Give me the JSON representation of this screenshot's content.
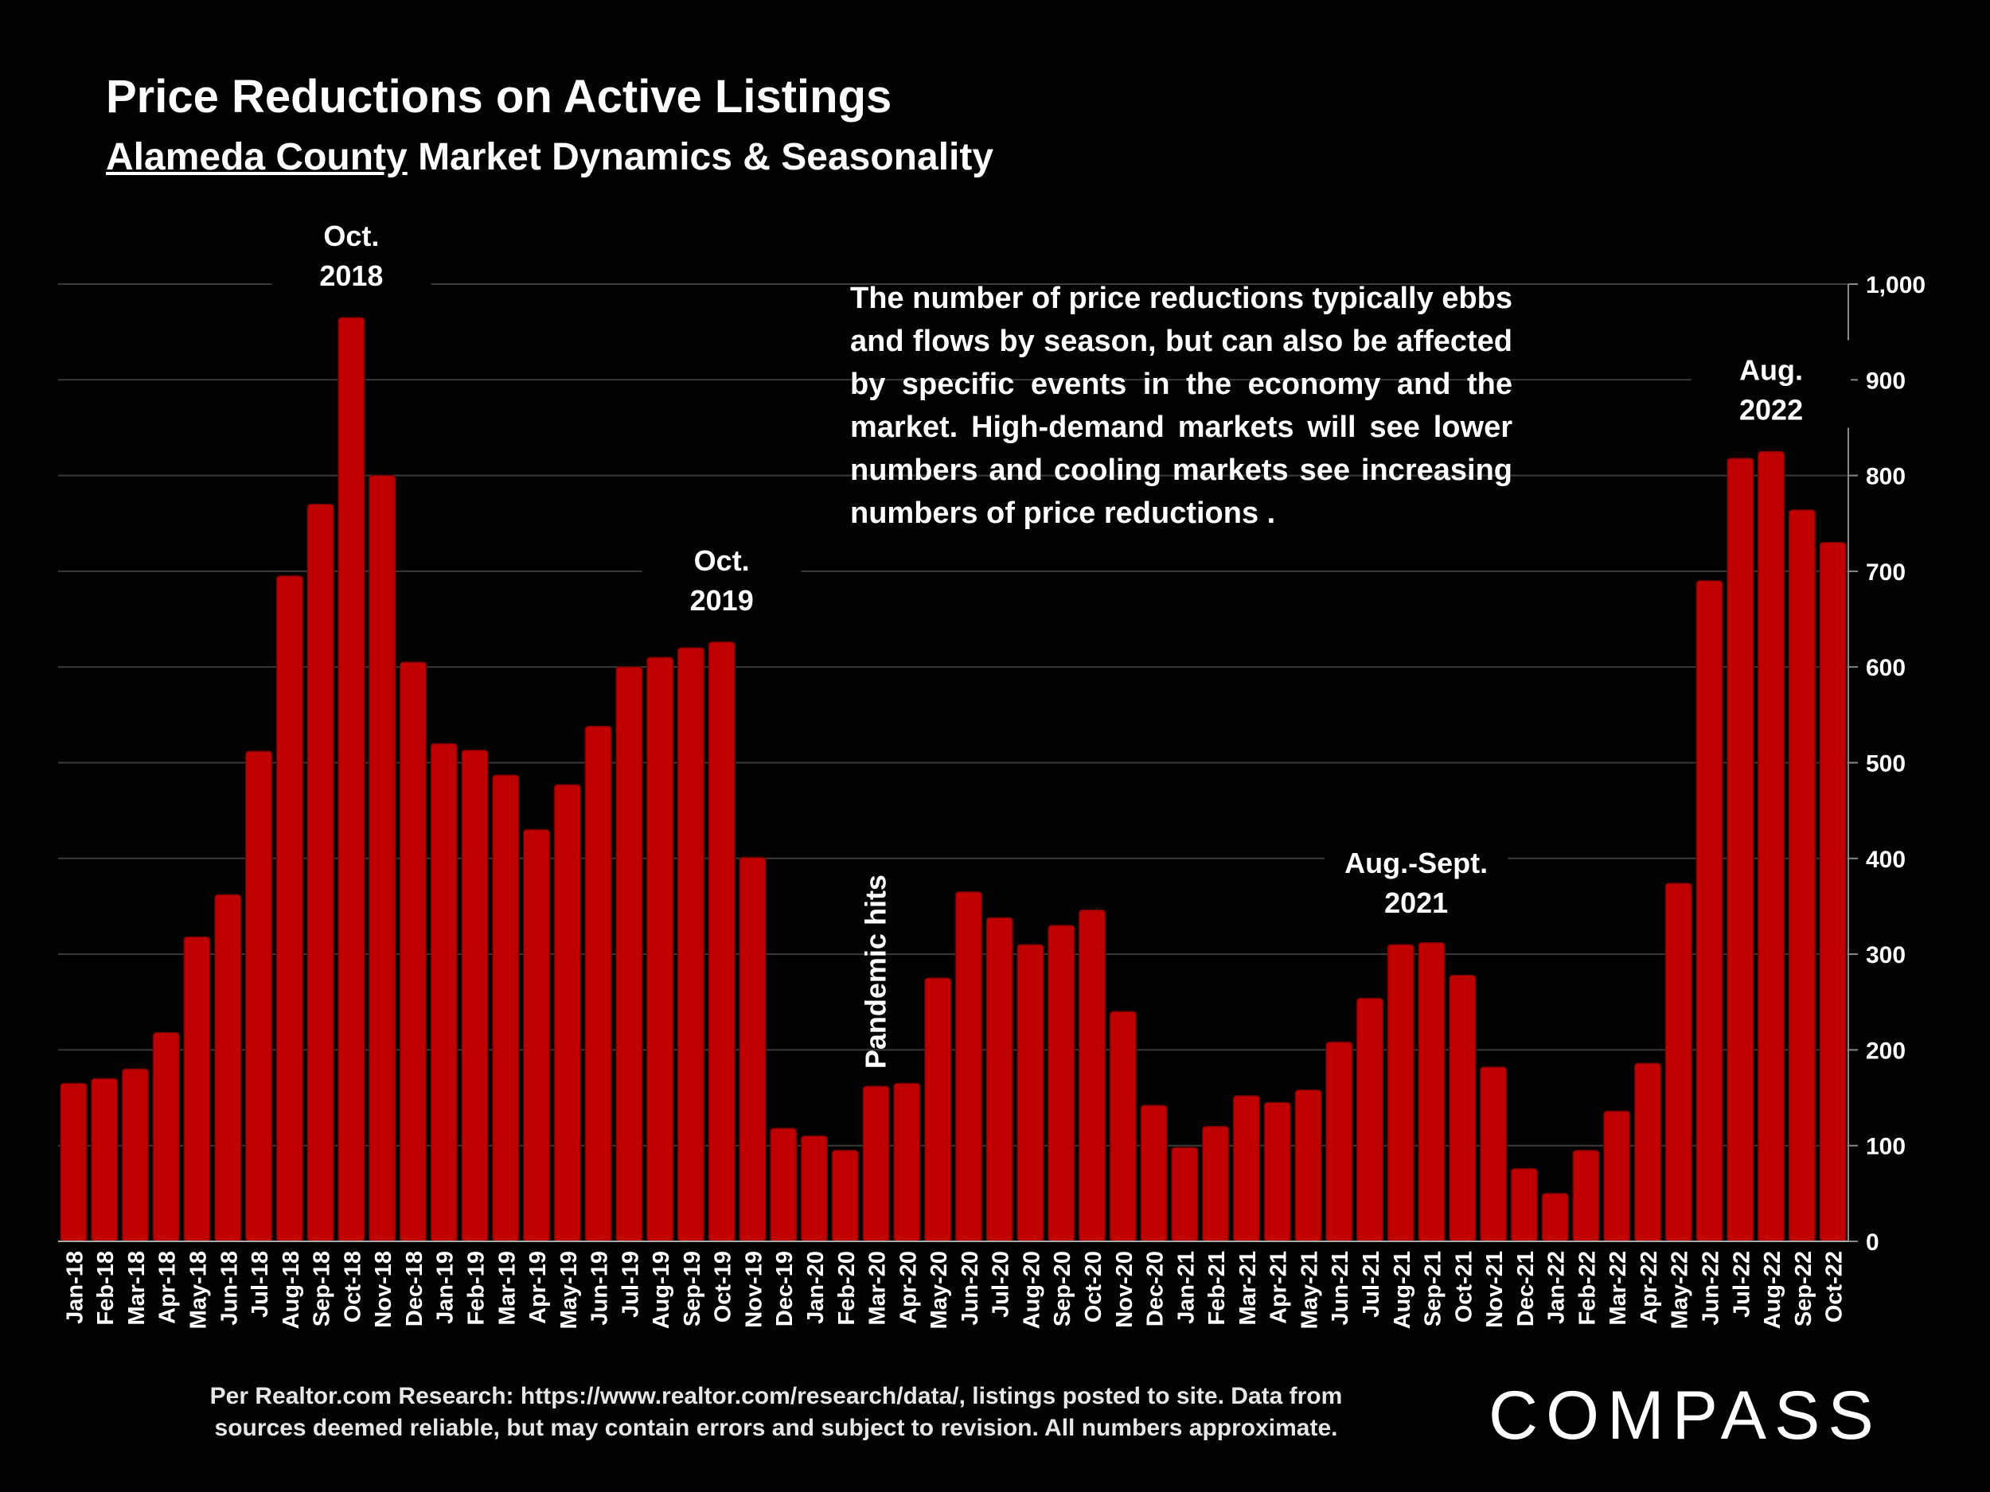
{
  "title": "Price Reductions on Active Listings",
  "subtitle_underlined": "Alameda County",
  "subtitle_rest": " Market Dynamics & Seasonality",
  "description": "The number of price reductions typically ebbs and flows by season, but can also be affected by specific events in the economy and the market. High-demand markets will see lower numbers and cooling markets see increasing numbers of price reductions .",
  "footer": {
    "line1": "Per Realtor.com Research:  https://www.realtor.com/research/data/, listings posted to site. Data from",
    "line2": "sources deemed reliable, but may contain errors and subject to revision. All numbers approximate."
  },
  "logo": "COMPASS",
  "colors": {
    "bar": "#c00000",
    "background": "#000000",
    "grid": "#3a3a3a",
    "text": "#ffffff"
  },
  "chart_data": {
    "type": "bar",
    "title": "Price Reductions on Active Listings",
    "ylim": [
      0,
      1000
    ],
    "yticks": [
      "0",
      "100",
      "200",
      "300",
      "400",
      "500",
      "600",
      "700",
      "800",
      "900",
      "1,000"
    ],
    "y_axis_side": "right",
    "grid": true,
    "categories": [
      "Jan-18",
      "Feb-18",
      "Mar-18",
      "Apr-18",
      "May-18",
      "Jun-18",
      "Jul-18",
      "Aug-18",
      "Sep-18",
      "Oct-18",
      "Nov-18",
      "Dec-18",
      "Jan-19",
      "Feb-19",
      "Mar-19",
      "Apr-19",
      "May-19",
      "Jun-19",
      "Jul-19",
      "Aug-19",
      "Sep-19",
      "Oct-19",
      "Nov-19",
      "Dec-19",
      "Jan-20",
      "Feb-20",
      "Mar-20",
      "Apr-20",
      "May-20",
      "Jun-20",
      "Jul-20",
      "Aug-20",
      "Sep-20",
      "Oct-20",
      "Nov-20",
      "Dec-20",
      "Jan-21",
      "Feb-21",
      "Mar-21",
      "Apr-21",
      "May-21",
      "Jun-21",
      "Jul-21",
      "Aug-21",
      "Sep-21",
      "Oct-21",
      "Nov-21",
      "Dec-21",
      "Jan-22",
      "Feb-22",
      "Mar-22",
      "Apr-22",
      "May-22",
      "Jun-22",
      "Jul-22",
      "Aug-22",
      "Sep-22",
      "Oct-22"
    ],
    "values": [
      165,
      170,
      180,
      218,
      318,
      362,
      512,
      695,
      770,
      965,
      800,
      605,
      520,
      513,
      487,
      430,
      477,
      538,
      600,
      610,
      620,
      626,
      401,
      118,
      110,
      95,
      162,
      165,
      275,
      365,
      338,
      310,
      330,
      346,
      240,
      142,
      98,
      120,
      152,
      145,
      158,
      208,
      254,
      310,
      312,
      278,
      182,
      76,
      50,
      95,
      136,
      186,
      374,
      690,
      818,
      825,
      764,
      730
    ],
    "annotations": [
      {
        "lines": [
          "Oct.",
          "2018"
        ],
        "category": "Oct-18"
      },
      {
        "lines": [
          "Oct.",
          "2019"
        ],
        "category": "Oct-19"
      },
      {
        "lines": [
          "Aug.-Sept.",
          "2021"
        ],
        "category": "Aug-21"
      },
      {
        "lines": [
          "Aug.",
          "2022"
        ],
        "category": "Aug-22"
      },
      {
        "lines": [
          "Pandemic hits"
        ],
        "category": "Mar-20",
        "rotated": true
      }
    ]
  }
}
